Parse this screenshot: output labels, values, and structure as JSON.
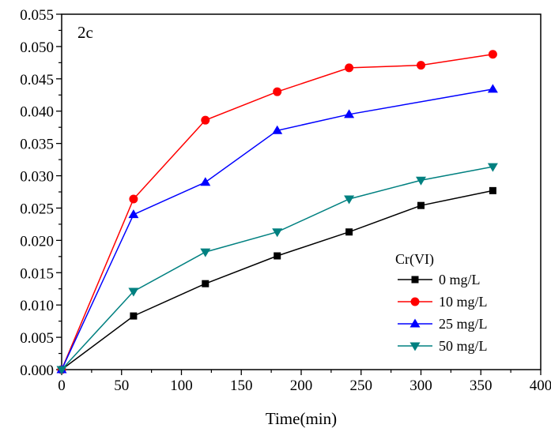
{
  "chart_data": {
    "type": "line",
    "title": "",
    "annotation": "2c",
    "xlabel": "Time(min)",
    "ylabel": "",
    "xlim": [
      0,
      400
    ],
    "ylim": [
      0,
      0.055
    ],
    "x_ticks": [
      "0",
      "50",
      "100",
      "150",
      "200",
      "250",
      "300",
      "350",
      "400"
    ],
    "y_ticks": [
      "0.000",
      "0.005",
      "0.010",
      "0.015",
      "0.020",
      "0.025",
      "0.030",
      "0.035",
      "0.040",
      "0.045",
      "0.050",
      "0.055"
    ],
    "grid": false,
    "legend_title": "Cr(VI)",
    "legend_position": "bottom-right",
    "series": [
      {
        "name": "0 mg/L",
        "color": "#000000",
        "marker": "square",
        "x": [
          0,
          60,
          120,
          180,
          240,
          300,
          360
        ],
        "y": [
          0,
          0.0083,
          0.0133,
          0.0176,
          0.0213,
          0.0254,
          0.0277
        ]
      },
      {
        "name": "10 mg/L",
        "color": "#ff0000",
        "marker": "circle",
        "x": [
          0,
          60,
          120,
          180,
          240,
          300,
          360
        ],
        "y": [
          0,
          0.0264,
          0.0386,
          0.043,
          0.0467,
          0.0471,
          0.0488
        ]
      },
      {
        "name": "25 mg/L",
        "color": "#0000ff",
        "marker": "triangle-up",
        "x": [
          0,
          60,
          120,
          180,
          240,
          360
        ],
        "y": [
          0,
          0.024,
          0.029,
          0.037,
          0.0395,
          0.0434
        ]
      },
      {
        "name": "50 mg/L",
        "color": "#008080",
        "marker": "triangle-down",
        "x": [
          0,
          60,
          120,
          180,
          240,
          300,
          360
        ],
        "y": [
          0,
          0.0121,
          0.0182,
          0.0213,
          0.0264,
          0.0293,
          0.0314
        ]
      }
    ]
  }
}
